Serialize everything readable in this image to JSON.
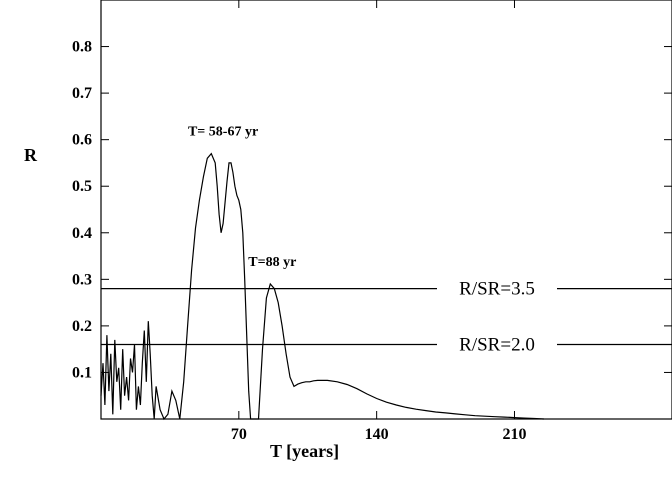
{
  "chart_data": {
    "type": "line",
    "title": "",
    "xlabel": "T [years]",
    "ylabel": "R",
    "xlim": [
      0,
      290
    ],
    "ylim": [
      0,
      0.9
    ],
    "x_ticks": [
      70,
      140,
      210
    ],
    "x_tick_labels": [
      "70",
      "140",
      "210"
    ],
    "y_ticks": [
      0.1,
      0.2,
      0.3,
      0.4,
      0.5,
      0.6,
      0.7,
      0.8
    ],
    "y_tick_labels": [
      "0.1",
      "0.2",
      "0.3",
      "0.4",
      "0.5",
      "0.6",
      "0.7",
      "0.8"
    ],
    "grid": false,
    "reference_lines": [
      {
        "y": 0.28,
        "label": "R/SR=3.5"
      },
      {
        "y": 0.16,
        "label": "R/SR=2.0"
      }
    ],
    "annotations": [
      {
        "text": "T= 58-67 yr",
        "x": 62,
        "y": 0.6
      },
      {
        "text": "T=88 yr",
        "x": 87,
        "y": 0.32
      }
    ],
    "series": [
      {
        "x": [
          0,
          1,
          2,
          3,
          4,
          5,
          6,
          7,
          8,
          9,
          10,
          11,
          12,
          13,
          14,
          15,
          16,
          17,
          18,
          19,
          20,
          21,
          22,
          23,
          24,
          25,
          26,
          27,
          28,
          30,
          32,
          34,
          36,
          38,
          40,
          42,
          44,
          46,
          48,
          50,
          52,
          54,
          56,
          58,
          59,
          60,
          61,
          62,
          64,
          65,
          66,
          67,
          68,
          69,
          70,
          71,
          72,
          73,
          74,
          75,
          76,
          77,
          80,
          82,
          84,
          86,
          88,
          90,
          92,
          94,
          96,
          98,
          100,
          102,
          104,
          106,
          108,
          110,
          115,
          120,
          125,
          130,
          135,
          140,
          145,
          150,
          155,
          160,
          165,
          170,
          175,
          180,
          185,
          190,
          195,
          200,
          205,
          210,
          215,
          220,
          225
        ],
        "y": [
          0.05,
          0.12,
          0.03,
          0.18,
          0.06,
          0.14,
          0.01,
          0.17,
          0.08,
          0.11,
          0.02,
          0.15,
          0.05,
          0.09,
          0.04,
          0.13,
          0.1,
          0.16,
          0.02,
          0.07,
          0.03,
          0.12,
          0.19,
          0.08,
          0.21,
          0.14,
          0.05,
          0.0,
          0.07,
          0.02,
          0.0,
          0.01,
          0.06,
          0.04,
          0.0,
          0.08,
          0.2,
          0.32,
          0.41,
          0.47,
          0.52,
          0.56,
          0.57,
          0.55,
          0.5,
          0.44,
          0.4,
          0.42,
          0.51,
          0.55,
          0.55,
          0.53,
          0.5,
          0.48,
          0.47,
          0.45,
          0.4,
          0.3,
          0.18,
          0.06,
          0.0,
          0.0,
          0.0,
          0.15,
          0.26,
          0.29,
          0.28,
          0.25,
          0.2,
          0.14,
          0.09,
          0.07,
          0.075,
          0.078,
          0.08,
          0.08,
          0.082,
          0.083,
          0.083,
          0.08,
          0.074,
          0.065,
          0.054,
          0.044,
          0.036,
          0.03,
          0.025,
          0.021,
          0.018,
          0.015,
          0.013,
          0.011,
          0.009,
          0.007,
          0.006,
          0.005,
          0.004,
          0.003,
          0.002,
          0.001,
          0.0
        ]
      }
    ]
  }
}
